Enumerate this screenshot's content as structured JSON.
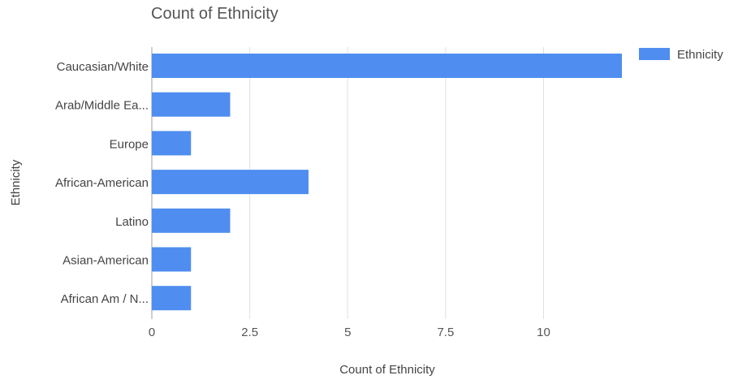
{
  "chart_data": {
    "type": "bar",
    "orientation": "horizontal",
    "title": "Count of Ethnicity",
    "xlabel": "Count of Ethnicity",
    "ylabel": "Ethnicity",
    "categories": [
      "Caucasian/White",
      "Arab/Middle Ea...",
      "Europe",
      "African-American",
      "Latino",
      "Asian-American",
      "African Am / N..."
    ],
    "series": [
      {
        "name": "Ethnicity",
        "color": "#4f8ef0",
        "values": [
          12,
          2,
          1,
          4,
          2,
          1,
          1
        ]
      }
    ],
    "xlim": [
      0,
      12
    ],
    "xticks": [
      0,
      2.5,
      5,
      7.5,
      10
    ],
    "xtick_labels": [
      "0",
      "2.5",
      "5",
      "7.5",
      "10"
    ],
    "grid": true,
    "legend_position": "top-right",
    "colors": {
      "bar": "#4f8ef0",
      "grid": "#e0e0e0",
      "text": "#555555",
      "title": "#555555"
    }
  }
}
